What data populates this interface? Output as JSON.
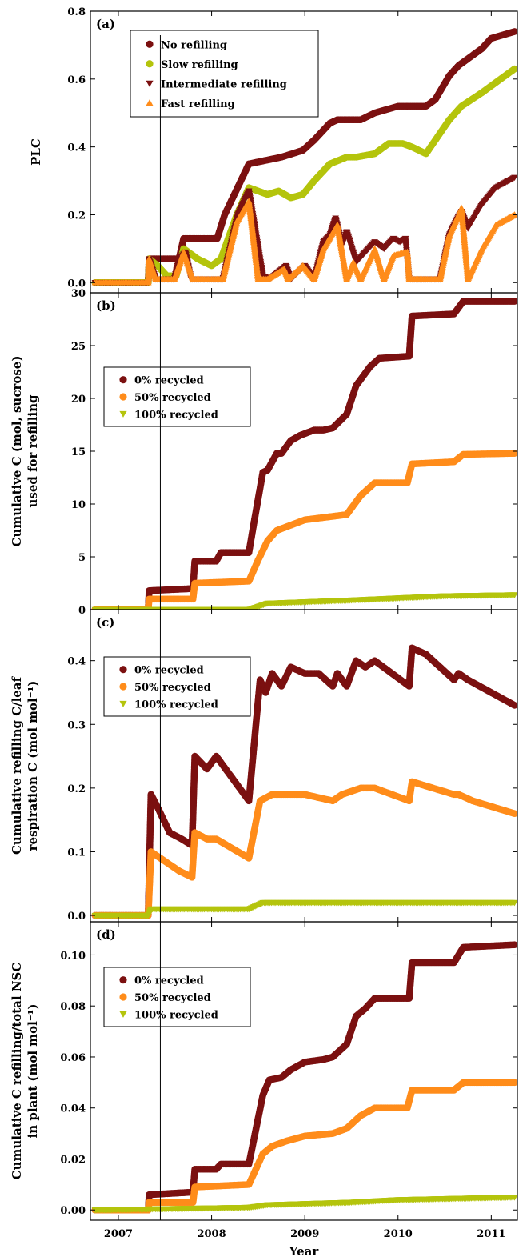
{
  "figure": {
    "xlabel": "Year",
    "x_ticks": [
      {
        "label": "2007",
        "value": 2007.0
      },
      {
        "label": "2008",
        "value": 2008.0
      },
      {
        "label": "2009",
        "value": 2009.0
      },
      {
        "label": "2010",
        "value": 2010.0
      },
      {
        "label": "2011",
        "value": 2011.0
      }
    ],
    "xlim": [
      2006.7,
      2011.28
    ],
    "vertical_marker_x": 2007.45
  },
  "colors": {
    "dark_red": "#7b1010",
    "yellow_green": "#b4c40c",
    "orange": "#ff8c1a",
    "axis": "#000000"
  },
  "chart_data": [
    {
      "type": "line",
      "panel": "(a)",
      "ylabel": "PLC",
      "ylim": [
        -0.03,
        0.8
      ],
      "yticks": [
        "0.0",
        "0.2",
        "0.4",
        "0.6",
        "0.8"
      ],
      "ytick_values": [
        0.0,
        0.2,
        0.4,
        0.6,
        0.8
      ],
      "legend_placement": "top-left",
      "series": [
        {
          "name": "No refilling",
          "marker": "circle",
          "color_key": "dark_red",
          "x": [
            2006.75,
            2007.32,
            2007.33,
            2007.65,
            2007.7,
            2008.06,
            2008.14,
            2008.4,
            2008.75,
            2008.98,
            2009.1,
            2009.27,
            2009.35,
            2009.6,
            2009.75,
            2010.0,
            2010.3,
            2010.4,
            2010.55,
            2010.65,
            2010.9,
            2011.0,
            2011.25
          ],
          "y": [
            0.0,
            0.0,
            0.07,
            0.07,
            0.13,
            0.13,
            0.2,
            0.35,
            0.37,
            0.39,
            0.42,
            0.47,
            0.48,
            0.48,
            0.5,
            0.52,
            0.52,
            0.54,
            0.61,
            0.64,
            0.69,
            0.72,
            0.74
          ]
        },
        {
          "name": "Slow refilling",
          "marker": "circle",
          "color_key": "yellow_green",
          "x": [
            2006.75,
            2007.32,
            2007.33,
            2007.42,
            2007.52,
            2007.62,
            2007.7,
            2007.85,
            2008.0,
            2008.1,
            2008.27,
            2008.4,
            2008.6,
            2008.72,
            2008.85,
            2008.98,
            2009.1,
            2009.27,
            2009.45,
            2009.55,
            2009.75,
            2009.9,
            2010.05,
            2010.15,
            2010.3,
            2010.55,
            2010.68,
            2010.9,
            2011.1,
            2011.25
          ],
          "y": [
            0.0,
            0.0,
            0.07,
            0.05,
            0.02,
            0.02,
            0.1,
            0.07,
            0.05,
            0.07,
            0.2,
            0.28,
            0.26,
            0.27,
            0.25,
            0.26,
            0.3,
            0.35,
            0.37,
            0.37,
            0.38,
            0.41,
            0.41,
            0.4,
            0.38,
            0.48,
            0.52,
            0.56,
            0.6,
            0.63
          ]
        },
        {
          "name": "Intermediate refilling",
          "marker": "triangle-down",
          "color_key": "dark_red",
          "x": [
            2006.75,
            2007.32,
            2007.33,
            2007.4,
            2007.48,
            2007.6,
            2007.65,
            2007.72,
            2007.78,
            2007.85,
            2008.12,
            2008.28,
            2008.4,
            2008.55,
            2008.62,
            2008.8,
            2008.85,
            2009.0,
            2009.1,
            2009.2,
            2009.27,
            2009.33,
            2009.4,
            2009.45,
            2009.55,
            2009.75,
            2009.85,
            2009.95,
            2010.02,
            2010.08,
            2010.12,
            2010.45,
            2010.55,
            2010.62,
            2010.68,
            2010.75,
            2010.9,
            2011.05,
            2011.25
          ],
          "y": [
            0.0,
            0.0,
            0.07,
            0.01,
            0.01,
            0.01,
            0.07,
            0.09,
            0.01,
            0.01,
            0.01,
            0.2,
            0.27,
            0.02,
            0.01,
            0.05,
            0.01,
            0.05,
            0.01,
            0.12,
            0.14,
            0.19,
            0.11,
            0.15,
            0.06,
            0.12,
            0.1,
            0.13,
            0.12,
            0.13,
            0.01,
            0.01,
            0.14,
            0.18,
            0.21,
            0.16,
            0.23,
            0.28,
            0.31
          ]
        },
        {
          "name": "Fast refilling",
          "marker": "triangle-up",
          "color_key": "orange",
          "x": [
            2006.75,
            2007.32,
            2007.33,
            2007.4,
            2007.48,
            2007.6,
            2007.7,
            2007.8,
            2008.12,
            2008.27,
            2008.4,
            2008.5,
            2008.6,
            2008.78,
            2008.82,
            2008.98,
            2009.1,
            2009.2,
            2009.35,
            2009.45,
            2009.52,
            2009.6,
            2009.75,
            2009.85,
            2009.95,
            2010.1,
            2010.12,
            2010.45,
            2010.55,
            2010.65,
            2010.68,
            2010.75,
            2010.9,
            2011.05,
            2011.25
          ],
          "y": [
            0.0,
            0.0,
            0.07,
            0.01,
            0.01,
            0.01,
            0.09,
            0.01,
            0.01,
            0.18,
            0.24,
            0.01,
            0.01,
            0.04,
            0.01,
            0.05,
            0.01,
            0.1,
            0.17,
            0.01,
            0.06,
            0.01,
            0.1,
            0.01,
            0.08,
            0.09,
            0.01,
            0.01,
            0.14,
            0.2,
            0.22,
            0.01,
            0.1,
            0.17,
            0.2
          ]
        }
      ]
    },
    {
      "type": "line",
      "panel": "(b)",
      "ylabel": "Cumulative C (mol, sucrose) used for refilling",
      "ylim": [
        0,
        30
      ],
      "yticks": [
        "0",
        "5",
        "10",
        "15",
        "20",
        "25",
        "30"
      ],
      "ytick_values": [
        0,
        5,
        10,
        15,
        20,
        25,
        30
      ],
      "legend_placement": "upper-left",
      "series": [
        {
          "name": "0% recycled",
          "marker": "circle",
          "color_key": "dark_red",
          "x": [
            2006.75,
            2007.32,
            2007.33,
            2007.8,
            2007.82,
            2008.05,
            2008.1,
            2008.4,
            2008.45,
            2008.55,
            2008.6,
            2008.7,
            2008.75,
            2008.85,
            2008.95,
            2009.1,
            2009.2,
            2009.3,
            2009.45,
            2009.55,
            2009.6,
            2009.7,
            2009.8,
            2010.12,
            2010.15,
            2010.6,
            2010.7,
            2011.25
          ],
          "y": [
            0,
            0,
            1.8,
            2.0,
            4.6,
            4.6,
            5.4,
            5.4,
            8.0,
            13.0,
            13.2,
            14.8,
            14.8,
            16.0,
            16.5,
            17.0,
            17.0,
            17.2,
            18.5,
            21.2,
            21.8,
            23.0,
            23.8,
            24.0,
            27.8,
            28.0,
            29.2,
            29.2
          ]
        },
        {
          "name": "50% recycled",
          "marker": "circle",
          "color_key": "orange",
          "x": [
            2006.75,
            2007.32,
            2007.33,
            2007.8,
            2007.82,
            2008.4,
            2008.5,
            2008.6,
            2008.7,
            2008.85,
            2009.0,
            2009.45,
            2009.6,
            2009.75,
            2010.1,
            2010.15,
            2010.6,
            2010.7,
            2011.25
          ],
          "y": [
            0,
            0,
            1.0,
            1.0,
            2.5,
            2.7,
            4.7,
            6.5,
            7.5,
            8.0,
            8.5,
            9.0,
            10.8,
            12.0,
            12.0,
            13.8,
            14.0,
            14.7,
            14.8
          ]
        },
        {
          "name": "100% recycled",
          "marker": "triangle-down",
          "color_key": "yellow_green",
          "x": [
            2006.75,
            2008.4,
            2008.6,
            2009.5,
            2010.0,
            2010.5,
            2011.25
          ],
          "y": [
            0,
            0,
            0.6,
            0.9,
            1.1,
            1.3,
            1.4
          ]
        }
      ]
    },
    {
      "type": "line",
      "panel": "(c)",
      "ylabel": "Cumulative refilling C/leaf respiration C (mol mol⁻¹)",
      "ylim": [
        -0.01,
        0.48
      ],
      "yticks": [
        "0.0",
        "0.1",
        "0.2",
        "0.3",
        "0.4"
      ],
      "ytick_values": [
        0.0,
        0.1,
        0.2,
        0.3,
        0.4
      ],
      "legend_placement": "upper-left",
      "series": [
        {
          "name": "0% recycled",
          "marker": "circle",
          "color_key": "dark_red",
          "x": [
            2006.75,
            2007.32,
            2007.35,
            2007.42,
            2007.55,
            2007.68,
            2007.79,
            2007.82,
            2007.95,
            2008.05,
            2008.4,
            2008.52,
            2008.58,
            2008.65,
            2008.75,
            2008.85,
            2009.0,
            2009.15,
            2009.3,
            2009.35,
            2009.45,
            2009.55,
            2009.65,
            2009.75,
            2010.12,
            2010.15,
            2010.3,
            2010.6,
            2010.65,
            2010.75,
            2011.25
          ],
          "y": [
            0.0,
            0.0,
            0.19,
            0.17,
            0.13,
            0.12,
            0.11,
            0.25,
            0.23,
            0.25,
            0.18,
            0.37,
            0.35,
            0.38,
            0.36,
            0.39,
            0.38,
            0.38,
            0.36,
            0.38,
            0.36,
            0.4,
            0.39,
            0.4,
            0.36,
            0.42,
            0.41,
            0.37,
            0.38,
            0.37,
            0.33
          ]
        },
        {
          "name": "50% recycled",
          "marker": "circle",
          "color_key": "orange",
          "x": [
            2006.75,
            2007.32,
            2007.35,
            2007.45,
            2007.65,
            2007.79,
            2007.82,
            2007.95,
            2008.05,
            2008.4,
            2008.52,
            2008.65,
            2008.8,
            2009.0,
            2009.3,
            2009.4,
            2009.6,
            2009.75,
            2010.12,
            2010.15,
            2010.6,
            2010.65,
            2010.8,
            2011.25
          ],
          "y": [
            0.0,
            0.0,
            0.1,
            0.09,
            0.07,
            0.06,
            0.13,
            0.12,
            0.12,
            0.09,
            0.18,
            0.19,
            0.19,
            0.19,
            0.18,
            0.19,
            0.2,
            0.2,
            0.18,
            0.21,
            0.19,
            0.19,
            0.18,
            0.16
          ]
        },
        {
          "name": "100% recycled",
          "marker": "triangle-down",
          "color_key": "yellow_green",
          "x": [
            2006.75,
            2007.32,
            2007.35,
            2007.8,
            2008.4,
            2008.55,
            2010.15,
            2011.25
          ],
          "y": [
            0.0,
            0.0,
            0.01,
            0.01,
            0.01,
            0.02,
            0.02,
            0.02
          ]
        }
      ]
    },
    {
      "type": "line",
      "panel": "(d)",
      "ylabel": "Cumulative C refilling/total NSC in plant (mol mol⁻¹)",
      "ylim": [
        -0.004,
        0.113
      ],
      "yticks": [
        "0.00",
        "0.02",
        "0.04",
        "0.06",
        "0.08",
        "0.10"
      ],
      "ytick_values": [
        0.0,
        0.02,
        0.04,
        0.06,
        0.08,
        0.1
      ],
      "legend_placement": "upper-left",
      "series": [
        {
          "name": "0% recycled",
          "marker": "circle",
          "color_key": "dark_red",
          "x": [
            2006.75,
            2007.32,
            2007.33,
            2007.8,
            2007.82,
            2008.05,
            2008.1,
            2008.4,
            2008.55,
            2008.62,
            2008.75,
            2008.85,
            2009.0,
            2009.2,
            2009.3,
            2009.45,
            2009.55,
            2009.65,
            2009.75,
            2010.12,
            2010.15,
            2010.6,
            2010.7,
            2011.25
          ],
          "y": [
            0.0,
            0.0,
            0.006,
            0.007,
            0.016,
            0.016,
            0.018,
            0.018,
            0.045,
            0.051,
            0.052,
            0.055,
            0.058,
            0.059,
            0.06,
            0.065,
            0.076,
            0.079,
            0.083,
            0.083,
            0.097,
            0.097,
            0.103,
            0.104
          ]
        },
        {
          "name": "50% recycled",
          "marker": "circle",
          "color_key": "orange",
          "x": [
            2006.75,
            2007.32,
            2007.33,
            2007.8,
            2007.82,
            2008.4,
            2008.55,
            2008.65,
            2008.8,
            2009.0,
            2009.3,
            2009.45,
            2009.6,
            2009.75,
            2010.1,
            2010.15,
            2010.6,
            2010.7,
            2011.25
          ],
          "y": [
            0.0,
            0.0,
            0.003,
            0.003,
            0.009,
            0.01,
            0.022,
            0.025,
            0.027,
            0.029,
            0.03,
            0.032,
            0.037,
            0.04,
            0.04,
            0.047,
            0.047,
            0.05,
            0.05
          ]
        },
        {
          "name": "100% recycled",
          "marker": "triangle-down",
          "color_key": "yellow_green",
          "x": [
            2006.75,
            2008.4,
            2008.6,
            2009.5,
            2010.0,
            2011.25
          ],
          "y": [
            0.0,
            0.001,
            0.002,
            0.003,
            0.004,
            0.005
          ]
        }
      ]
    }
  ]
}
